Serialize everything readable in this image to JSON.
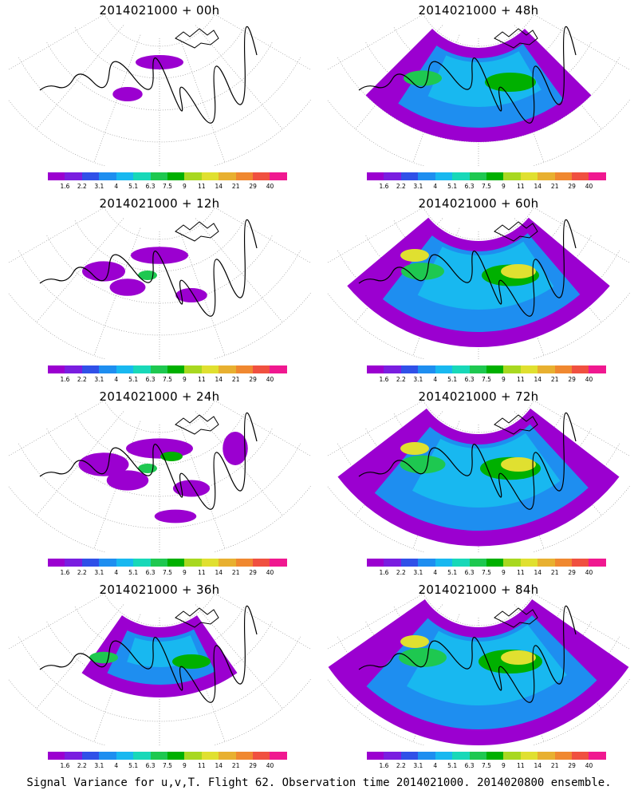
{
  "figure": {
    "caption": "Signal Variance for u,v,T. Flight 62. Observation time 2014021000. 2014020800 ensemble.",
    "panels": [
      {
        "title": "2014021000 + 00h",
        "coverage": 0.15
      },
      {
        "title": "2014021000 + 48h",
        "coverage": 0.8
      },
      {
        "title": "2014021000 + 12h",
        "coverage": 0.3
      },
      {
        "title": "2014021000 + 60h",
        "coverage": 0.9
      },
      {
        "title": "2014021000 + 24h",
        "coverage": 0.45
      },
      {
        "title": "2014021000 + 72h",
        "coverage": 0.95
      },
      {
        "title": "2014021000 + 36h",
        "coverage": 0.6
      },
      {
        "title": "2014021000 + 84h",
        "coverage": 1.0
      }
    ]
  },
  "chart_data": {
    "type": "heatmap",
    "colorbar": {
      "levels": [
        "1.6",
        "2.2",
        "3.1",
        "4",
        "5.1",
        "6.3",
        "7.5",
        "9",
        "11",
        "14",
        "21",
        "29",
        "40"
      ],
      "colors": [
        "#9b00d0",
        "#7a1ee0",
        "#3050e8",
        "#1e8ef0",
        "#18b8f0",
        "#18d8b8",
        "#1ec850",
        "#00b000",
        "#a8d820",
        "#e0e030",
        "#e8b030",
        "#f08830",
        "#f05040",
        "#f01890"
      ]
    }
  }
}
